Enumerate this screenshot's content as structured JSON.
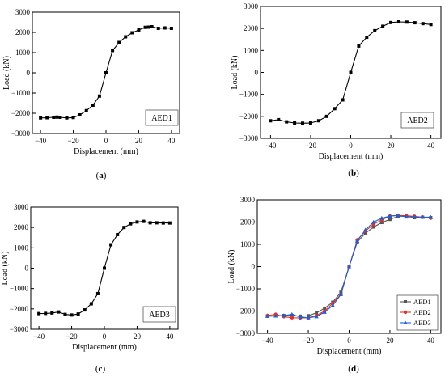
{
  "chart_data": [
    {
      "type": "line",
      "caption": "(a)",
      "xlabel": "Displacement (mm)",
      "ylabel": "Load (kN)",
      "xlim": [
        -45,
        45
      ],
      "ylim": [
        -3000,
        3000
      ],
      "xticks": [
        -40,
        -20,
        0,
        20,
        40
      ],
      "yticks": [
        -3000,
        -2000,
        -1000,
        0,
        1000,
        2000,
        3000
      ],
      "grid": false,
      "legend": "box",
      "series": [
        {
          "name": "AED1",
          "color": "#000000",
          "marker": "square",
          "x": [
            -40,
            -36,
            -32,
            -30,
            -28,
            -24,
            -20,
            -16,
            -12,
            -8,
            -4,
            0,
            4,
            8,
            12,
            16,
            20,
            24,
            26,
            28,
            32,
            36,
            40
          ],
          "y": [
            -2230,
            -2220,
            -2200,
            -2190,
            -2200,
            -2230,
            -2210,
            -2080,
            -1870,
            -1600,
            -1150,
            0,
            1100,
            1500,
            1780,
            1980,
            2120,
            2250,
            2260,
            2280,
            2200,
            2220,
            2200
          ]
        }
      ]
    },
    {
      "type": "line",
      "caption": "(b)",
      "xlabel": "Displacement (mm)",
      "ylabel": "Load (kN)",
      "xlim": [
        -45,
        45
      ],
      "ylim": [
        -3000,
        3000
      ],
      "xticks": [
        -40,
        -20,
        0,
        20,
        40
      ],
      "yticks": [
        -3000,
        -2000,
        -1000,
        0,
        1000,
        2000,
        3000
      ],
      "grid": false,
      "legend": "box",
      "series": [
        {
          "name": "AED2",
          "color": "#000000",
          "marker": "square",
          "x": [
            -40,
            -36,
            -32,
            -28,
            -24,
            -20,
            -16,
            -12,
            -8,
            -4,
            0,
            4,
            8,
            12,
            16,
            20,
            24,
            28,
            32,
            36,
            40
          ],
          "y": [
            -2200,
            -2150,
            -2250,
            -2300,
            -2310,
            -2300,
            -2200,
            -2000,
            -1650,
            -1250,
            0,
            1200,
            1600,
            1900,
            2100,
            2270,
            2300,
            2290,
            2260,
            2220,
            2180
          ]
        }
      ]
    },
    {
      "type": "line",
      "caption": "(c)",
      "xlabel": "Displacement (mm)",
      "ylabel": "Load (kN)",
      "xlim": [
        -45,
        45
      ],
      "ylim": [
        -3000,
        3000
      ],
      "xticks": [
        -40,
        -20,
        0,
        20,
        40
      ],
      "yticks": [
        -3000,
        -2000,
        -1000,
        0,
        1000,
        2000,
        3000
      ],
      "grid": false,
      "legend": "box",
      "series": [
        {
          "name": "AED3",
          "color": "#000000",
          "marker": "square",
          "x": [
            -40,
            -36,
            -32,
            -28,
            -24,
            -20,
            -16,
            -12,
            -8,
            -4,
            0,
            4,
            8,
            12,
            16,
            20,
            24,
            28,
            32,
            36,
            40
          ],
          "y": [
            -2230,
            -2220,
            -2200,
            -2150,
            -2270,
            -2300,
            -2250,
            -2050,
            -1750,
            -1250,
            0,
            1150,
            1650,
            2000,
            2180,
            2270,
            2300,
            2230,
            2230,
            2220,
            2220
          ]
        }
      ]
    },
    {
      "type": "line",
      "caption": "(d)",
      "xlabel": "Displacement (mm)",
      "ylabel": "Load (kN)",
      "xlim": [
        -45,
        45
      ],
      "ylim": [
        -3000,
        3000
      ],
      "xticks": [
        -40,
        -20,
        0,
        20,
        40
      ],
      "yticks": [
        -3000,
        -2000,
        -1000,
        0,
        1000,
        2000,
        3000
      ],
      "grid": false,
      "legend": "bottom-right",
      "series": [
        {
          "name": "AED1",
          "color": "#555555",
          "marker": "square",
          "x": [
            -40,
            -36,
            -32,
            -28,
            -24,
            -20,
            -16,
            -12,
            -8,
            -4,
            0,
            4,
            8,
            12,
            16,
            20,
            24,
            28,
            32,
            36,
            40
          ],
          "y": [
            -2230,
            -2210,
            -2200,
            -2200,
            -2230,
            -2210,
            -2080,
            -1870,
            -1600,
            -1150,
            0,
            1100,
            1500,
            1780,
            1980,
            2120,
            2250,
            2280,
            2200,
            2220,
            2200
          ]
        },
        {
          "name": "AED2",
          "color": "#e0302b",
          "marker": "circle",
          "x": [
            -40,
            -36,
            -32,
            -28,
            -24,
            -20,
            -16,
            -12,
            -8,
            -4,
            0,
            4,
            8,
            12,
            16,
            20,
            24,
            28,
            32,
            36,
            40
          ],
          "y": [
            -2200,
            -2150,
            -2250,
            -2300,
            -2310,
            -2300,
            -2200,
            -2000,
            -1650,
            -1250,
            0,
            1200,
            1600,
            1900,
            2100,
            2270,
            2300,
            2290,
            2260,
            2220,
            2180
          ]
        },
        {
          "name": "AED3",
          "color": "#1f5fcf",
          "marker": "triangle",
          "x": [
            -40,
            -36,
            -32,
            -28,
            -24,
            -20,
            -16,
            -12,
            -8,
            -4,
            0,
            4,
            8,
            12,
            16,
            20,
            24,
            28,
            32,
            36,
            40
          ],
          "y": [
            -2230,
            -2220,
            -2200,
            -2150,
            -2270,
            -2300,
            -2250,
            -2050,
            -1750,
            -1250,
            0,
            1150,
            1650,
            2000,
            2180,
            2270,
            2300,
            2230,
            2230,
            2220,
            2220
          ]
        }
      ]
    }
  ]
}
